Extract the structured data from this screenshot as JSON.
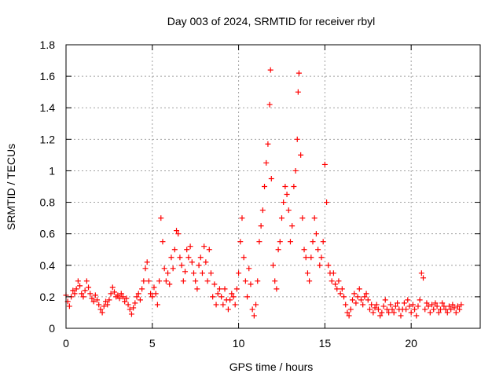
{
  "chart_data": {
    "type": "scatter",
    "title": "Day 003 of 2024, SRMTID for receiver rbyl",
    "xlabel": "GPS time / hours",
    "ylabel": "SRMTID / TECUs",
    "xlim": [
      0,
      24
    ],
    "ylim": [
      0,
      1.8
    ],
    "x_ticks": [
      0,
      5,
      10,
      15,
      20
    ],
    "x_tick_labels": [
      "0",
      "5",
      "10",
      "15",
      "20"
    ],
    "y_ticks": [
      0,
      0.2,
      0.4,
      0.6,
      0.8,
      1,
      1.2,
      1.4,
      1.6,
      1.8
    ],
    "y_tick_labels": [
      "0",
      "0.2",
      "0.4",
      "0.6",
      "0.8",
      "1",
      "1.2",
      "1.4",
      "1.6",
      "1.8"
    ],
    "grid": true,
    "marker": "plus",
    "series": [
      {
        "name": "SRMTID",
        "color": "#ff0000",
        "points": [
          [
            0.0,
            0.21
          ],
          [
            0.1,
            0.17
          ],
          [
            0.2,
            0.14
          ],
          [
            0.3,
            0.2
          ],
          [
            0.4,
            0.24
          ],
          [
            0.5,
            0.22
          ],
          [
            0.6,
            0.25
          ],
          [
            0.7,
            0.3
          ],
          [
            0.8,
            0.27
          ],
          [
            0.9,
            0.22
          ],
          [
            1.0,
            0.2
          ],
          [
            1.1,
            0.24
          ],
          [
            1.2,
            0.3
          ],
          [
            1.3,
            0.26
          ],
          [
            1.4,
            0.22
          ],
          [
            1.5,
            0.19
          ],
          [
            1.6,
            0.17
          ],
          [
            1.7,
            0.21
          ],
          [
            1.8,
            0.18
          ],
          [
            1.9,
            0.15
          ],
          [
            2.0,
            0.12
          ],
          [
            2.1,
            0.1
          ],
          [
            2.2,
            0.14
          ],
          [
            2.3,
            0.17
          ],
          [
            2.4,
            0.15
          ],
          [
            2.5,
            0.18
          ],
          [
            2.6,
            0.22
          ],
          [
            2.7,
            0.26
          ],
          [
            2.8,
            0.23
          ],
          [
            2.9,
            0.2
          ],
          [
            3.0,
            0.21
          ],
          [
            3.1,
            0.19
          ],
          [
            3.2,
            0.22
          ],
          [
            3.3,
            0.2
          ],
          [
            3.4,
            0.17
          ],
          [
            3.5,
            0.19
          ],
          [
            3.6,
            0.15
          ],
          [
            3.7,
            0.12
          ],
          [
            3.8,
            0.09
          ],
          [
            3.9,
            0.13
          ],
          [
            4.0,
            0.16
          ],
          [
            4.1,
            0.2
          ],
          [
            4.2,
            0.22
          ],
          [
            4.3,
            0.18
          ],
          [
            4.4,
            0.25
          ],
          [
            4.5,
            0.3
          ],
          [
            4.6,
            0.38
          ],
          [
            4.7,
            0.42
          ],
          [
            4.8,
            0.3
          ],
          [
            4.9,
            0.22
          ],
          [
            5.0,
            0.2
          ],
          [
            5.1,
            0.26
          ],
          [
            5.2,
            0.22
          ],
          [
            5.3,
            0.15
          ],
          [
            5.4,
            0.3
          ],
          [
            5.5,
            0.7
          ],
          [
            5.6,
            0.55
          ],
          [
            5.7,
            0.38
          ],
          [
            5.8,
            0.3
          ],
          [
            5.9,
            0.35
          ],
          [
            6.0,
            0.28
          ],
          [
            6.1,
            0.45
          ],
          [
            6.2,
            0.38
          ],
          [
            6.3,
            0.5
          ],
          [
            6.4,
            0.62
          ],
          [
            6.5,
            0.6
          ],
          [
            6.6,
            0.45
          ],
          [
            6.7,
            0.4
          ],
          [
            6.8,
            0.3
          ],
          [
            6.9,
            0.36
          ],
          [
            7.0,
            0.5
          ],
          [
            7.1,
            0.45
          ],
          [
            7.2,
            0.52
          ],
          [
            7.3,
            0.42
          ],
          [
            7.4,
            0.35
          ],
          [
            7.5,
            0.3
          ],
          [
            7.6,
            0.25
          ],
          [
            7.7,
            0.4
          ],
          [
            7.8,
            0.45
          ],
          [
            7.9,
            0.35
          ],
          [
            8.0,
            0.52
          ],
          [
            8.1,
            0.42
          ],
          [
            8.2,
            0.3
          ],
          [
            8.3,
            0.5
          ],
          [
            8.4,
            0.35
          ],
          [
            8.5,
            0.2
          ],
          [
            8.6,
            0.28
          ],
          [
            8.7,
            0.15
          ],
          [
            8.8,
            0.22
          ],
          [
            8.9,
            0.25
          ],
          [
            9.0,
            0.2
          ],
          [
            9.1,
            0.15
          ],
          [
            9.2,
            0.25
          ],
          [
            9.3,
            0.18
          ],
          [
            9.4,
            0.12
          ],
          [
            9.5,
            0.18
          ],
          [
            9.6,
            0.22
          ],
          [
            9.7,
            0.2
          ],
          [
            9.8,
            0.15
          ],
          [
            9.9,
            0.25
          ],
          [
            10.0,
            0.35
          ],
          [
            10.1,
            0.55
          ],
          [
            10.2,
            0.7
          ],
          [
            10.3,
            0.45
          ],
          [
            10.4,
            0.3
          ],
          [
            10.5,
            0.2
          ],
          [
            10.6,
            0.38
          ],
          [
            10.7,
            0.28
          ],
          [
            10.8,
            0.12
          ],
          [
            10.9,
            0.08
          ],
          [
            11.0,
            0.15
          ],
          [
            11.1,
            0.3
          ],
          [
            11.2,
            0.55
          ],
          [
            11.3,
            0.65
          ],
          [
            11.4,
            0.75
          ],
          [
            11.5,
            0.9
          ],
          [
            11.6,
            1.05
          ],
          [
            11.7,
            1.17
          ],
          [
            11.8,
            1.42
          ],
          [
            11.85,
            1.64
          ],
          [
            11.9,
            0.95
          ],
          [
            12.0,
            0.4
          ],
          [
            12.1,
            0.3
          ],
          [
            12.2,
            0.25
          ],
          [
            12.3,
            0.5
          ],
          [
            12.4,
            0.55
          ],
          [
            12.5,
            0.7
          ],
          [
            12.6,
            0.8
          ],
          [
            12.7,
            0.9
          ],
          [
            12.8,
            0.85
          ],
          [
            12.9,
            0.75
          ],
          [
            13.0,
            0.55
          ],
          [
            13.1,
            0.65
          ],
          [
            13.2,
            0.9
          ],
          [
            13.3,
            1.0
          ],
          [
            13.4,
            1.2
          ],
          [
            13.45,
            1.5
          ],
          [
            13.5,
            1.62
          ],
          [
            13.6,
            1.1
          ],
          [
            13.7,
            0.7
          ],
          [
            13.8,
            0.5
          ],
          [
            13.9,
            0.45
          ],
          [
            14.0,
            0.35
          ],
          [
            14.1,
            0.3
          ],
          [
            14.2,
            0.45
          ],
          [
            14.3,
            0.55
          ],
          [
            14.4,
            0.7
          ],
          [
            14.5,
            0.6
          ],
          [
            14.6,
            0.5
          ],
          [
            14.7,
            0.4
          ],
          [
            14.8,
            0.45
          ],
          [
            14.9,
            0.55
          ],
          [
            15.0,
            1.04
          ],
          [
            15.1,
            0.8
          ],
          [
            15.2,
            0.4
          ],
          [
            15.3,
            0.35
          ],
          [
            15.4,
            0.3
          ],
          [
            15.5,
            0.35
          ],
          [
            15.6,
            0.28
          ],
          [
            15.7,
            0.25
          ],
          [
            15.8,
            0.3
          ],
          [
            15.9,
            0.22
          ],
          [
            16.0,
            0.25
          ],
          [
            16.1,
            0.2
          ],
          [
            16.2,
            0.15
          ],
          [
            16.3,
            0.1
          ],
          [
            16.4,
            0.08
          ],
          [
            16.5,
            0.12
          ],
          [
            16.6,
            0.18
          ],
          [
            16.7,
            0.22
          ],
          [
            16.8,
            0.16
          ],
          [
            16.9,
            0.2
          ],
          [
            17.0,
            0.25
          ],
          [
            17.1,
            0.18
          ],
          [
            17.2,
            0.15
          ],
          [
            17.3,
            0.2
          ],
          [
            17.4,
            0.22
          ],
          [
            17.5,
            0.18
          ],
          [
            17.6,
            0.12
          ],
          [
            17.7,
            0.15
          ],
          [
            17.8,
            0.1
          ],
          [
            17.9,
            0.13
          ],
          [
            18.0,
            0.15
          ],
          [
            18.1,
            0.12
          ],
          [
            18.2,
            0.08
          ],
          [
            18.3,
            0.1
          ],
          [
            18.4,
            0.14
          ],
          [
            18.5,
            0.18
          ],
          [
            18.6,
            0.12
          ],
          [
            18.7,
            0.1
          ],
          [
            18.8,
            0.15
          ],
          [
            18.9,
            0.12
          ],
          [
            19.0,
            0.1
          ],
          [
            19.1,
            0.14
          ],
          [
            19.2,
            0.16
          ],
          [
            19.3,
            0.12
          ],
          [
            19.4,
            0.08
          ],
          [
            19.5,
            0.12
          ],
          [
            19.6,
            0.16
          ],
          [
            19.7,
            0.12
          ],
          [
            19.8,
            0.18
          ],
          [
            19.9,
            0.14
          ],
          [
            20.0,
            0.1
          ],
          [
            20.1,
            0.15
          ],
          [
            20.2,
            0.12
          ],
          [
            20.3,
            0.08
          ],
          [
            20.4,
            0.14
          ],
          [
            20.5,
            0.18
          ],
          [
            20.6,
            0.35
          ],
          [
            20.7,
            0.32
          ],
          [
            20.8,
            0.12
          ],
          [
            20.9,
            0.16
          ],
          [
            21.0,
            0.14
          ],
          [
            21.1,
            0.1
          ],
          [
            21.2,
            0.15
          ],
          [
            21.3,
            0.12
          ],
          [
            21.4,
            0.16
          ],
          [
            21.5,
            0.14
          ],
          [
            21.6,
            0.1
          ],
          [
            21.7,
            0.12
          ],
          [
            21.8,
            0.16
          ],
          [
            21.9,
            0.14
          ],
          [
            22.0,
            0.12
          ],
          [
            22.1,
            0.1
          ],
          [
            22.2,
            0.14
          ],
          [
            22.3,
            0.12
          ],
          [
            22.4,
            0.15
          ],
          [
            22.5,
            0.13
          ],
          [
            22.6,
            0.1
          ],
          [
            22.7,
            0.14
          ],
          [
            22.8,
            0.12
          ],
          [
            22.9,
            0.15
          ]
        ]
      }
    ]
  }
}
